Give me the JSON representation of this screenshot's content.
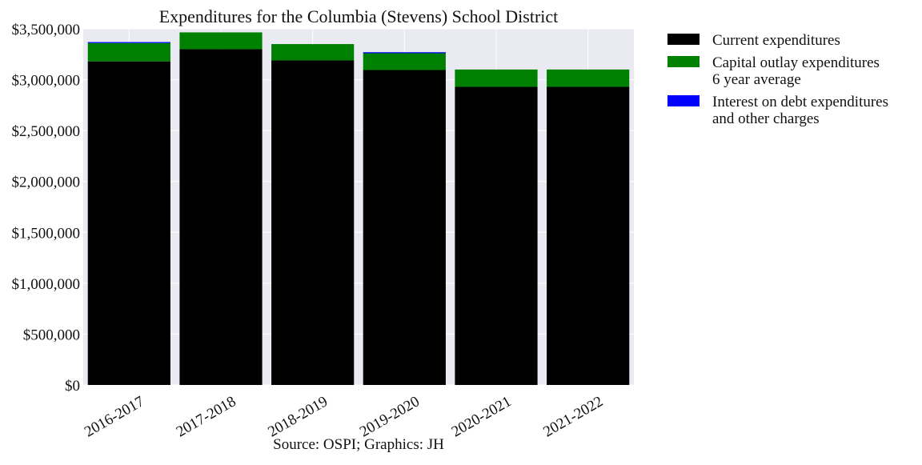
{
  "chart_data": {
    "type": "bar",
    "stacked": true,
    "title": "Expenditures for the Columbia (Stevens) School District",
    "xlabel": "Source: OSPI; Graphics: JH",
    "ylabel": "",
    "categories": [
      "2016-2017",
      "2017-2018",
      "2018-2019",
      "2019-2020",
      "2020-2021",
      "2021-2022"
    ],
    "series": [
      {
        "name": "Current expenditures",
        "color": "#000000",
        "values": [
          3180000,
          3300000,
          3190000,
          3095000,
          2930000,
          2930000
        ]
      },
      {
        "name": "Capital outlay expenditures\n6 year average",
        "color": "#008000",
        "values": [
          180000,
          165000,
          160000,
          165000,
          170000,
          170000
        ]
      },
      {
        "name": "Interest on debt expenditures\nand other charges",
        "color": "#0000ff",
        "values": [
          10000,
          0,
          0,
          10000,
          0,
          0
        ]
      }
    ],
    "ylim": [
      0,
      3500000
    ],
    "yticks": [
      0,
      500000,
      1000000,
      1500000,
      2000000,
      2500000,
      3000000,
      3500000
    ],
    "ytick_labels": [
      "$0",
      "$500,000",
      "$1,000,000",
      "$1,500,000",
      "$2,000,000",
      "$2,500,000",
      "$3,000,000",
      "$3,500,000"
    ],
    "grid": true,
    "legend_position": "outside-right-top",
    "plot_background": "#eaeaf2",
    "grid_color": "#ffffff"
  }
}
